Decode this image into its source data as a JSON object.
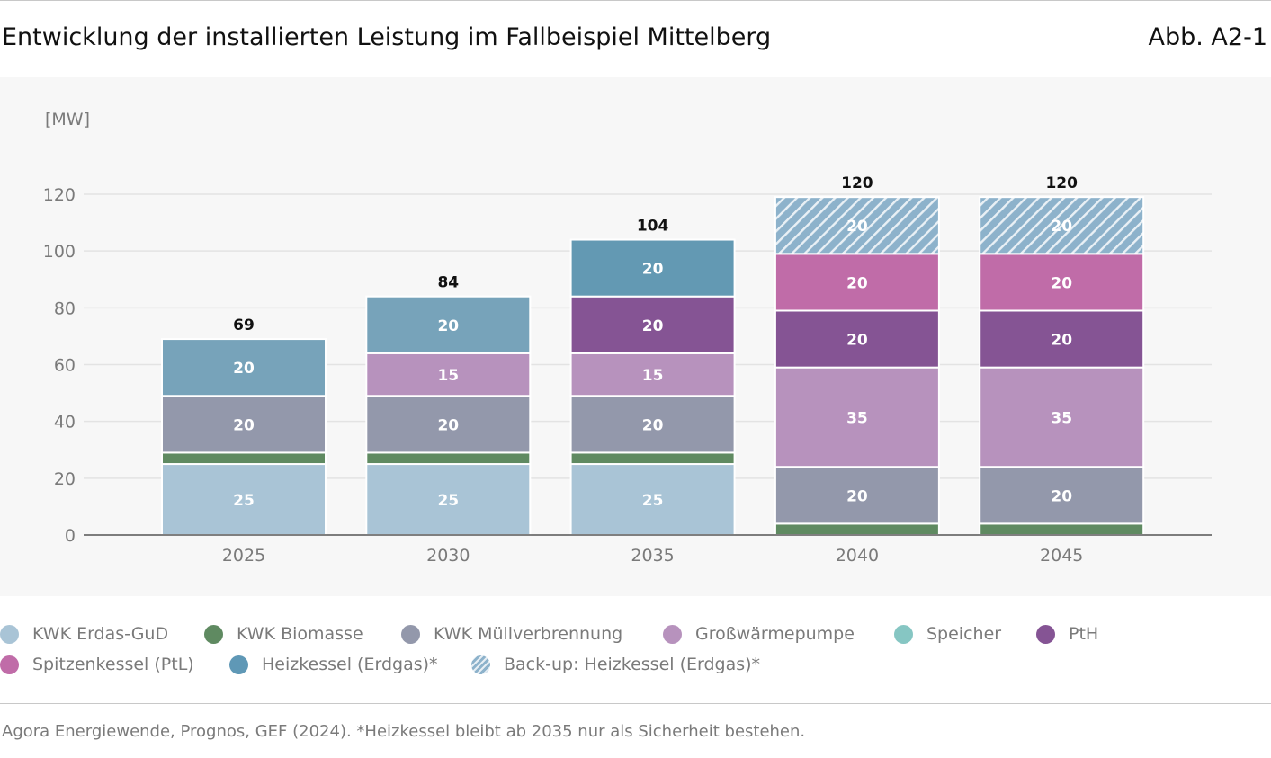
{
  "header": {
    "title": "Entwicklung der installierten Leistung im Fallbeispiel Mittelberg",
    "figure_label": "Abb. A2-1"
  },
  "chart_data": {
    "type": "bar",
    "stacked": true,
    "unit_label": "[MW]",
    "categories": [
      "2025",
      "2030",
      "2035",
      "2040",
      "2045"
    ],
    "ylim": [
      0,
      120
    ],
    "yticks": [
      0,
      20,
      40,
      60,
      80,
      100,
      120
    ],
    "grid": true,
    "totals": [
      "69",
      "84",
      "104",
      "120",
      "120"
    ],
    "series": [
      {
        "name": "KWK Erdas-GuD",
        "color": "#a9c4d6",
        "hatched": false,
        "values": [
          25,
          25,
          25,
          0,
          0
        ],
        "labels": [
          "25",
          "25",
          "25",
          "",
          ""
        ]
      },
      {
        "name": "KWK Biomasse",
        "color": "#5f8a61",
        "hatched": false,
        "values": [
          4,
          4,
          4,
          4,
          4
        ],
        "labels": [
          "",
          "",
          "",
          "",
          ""
        ]
      },
      {
        "name": "KWK Müllverbrennung",
        "color": "#9398ab",
        "hatched": false,
        "values": [
          20,
          20,
          20,
          20,
          20
        ],
        "labels": [
          "20",
          "20",
          "20",
          "20",
          "20"
        ]
      },
      {
        "name": "Großwärmepumpe",
        "color": "#b792bd",
        "hatched": false,
        "values": [
          0,
          15,
          15,
          35,
          35
        ],
        "labels": [
          "",
          "15",
          "15",
          "35",
          "35"
        ]
      },
      {
        "name": "Speicher",
        "color": "#86c6c3",
        "hatched": false,
        "values": [
          0,
          0,
          0,
          0,
          0
        ],
        "labels": [
          "",
          "",
          "",
          "",
          ""
        ]
      },
      {
        "name": "PtH",
        "color": "#855494",
        "hatched": false,
        "values": [
          0,
          0,
          20,
          20,
          20
        ],
        "labels": [
          "",
          "",
          "20",
          "20",
          "20"
        ]
      },
      {
        "name": "Spitzenkessel (PtL)",
        "color": "#c06ca8",
        "hatched": false,
        "values": [
          0,
          0,
          0,
          20,
          20
        ],
        "labels": [
          "",
          "",
          "",
          "20",
          "20"
        ]
      },
      {
        "name": "Heizkessel (Erdgas)*",
        "color": "#6d9eb8",
        "hatched": false,
        "values": [
          20,
          20,
          20,
          0,
          0
        ],
        "labels": [
          "20",
          "20",
          "20",
          "",
          ""
        ]
      },
      {
        "name": "Back-up: Heizkessel (Erdgas)*",
        "color": "#8db2cb",
        "hatched": true,
        "values": [
          0,
          0,
          0,
          20,
          20
        ],
        "labels": [
          "",
          "",
          "",
          "20",
          "20"
        ]
      }
    ],
    "bar_colors_override": {
      "Heizkessel (Erdgas)*": [
        "#77a3ba",
        "#77a3ba",
        "#6399b3",
        "",
        ""
      ]
    }
  },
  "legend": {
    "items": [
      {
        "label": "KWK Erdas-GuD",
        "color": "#a9c4d6",
        "hatched": false
      },
      {
        "label": "KWK Biomasse",
        "color": "#5f8a61",
        "hatched": false
      },
      {
        "label": "KWK Müllverbrennung",
        "color": "#9398ab",
        "hatched": false
      },
      {
        "label": "Großwärmepumpe",
        "color": "#b792bd",
        "hatched": false
      },
      {
        "label": "Speicher",
        "color": "#86c6c3",
        "hatched": false
      },
      {
        "label": "PtH",
        "color": "#855494",
        "hatched": false
      },
      {
        "label": "Spitzenkessel (PtL)",
        "color": "#c06ca8",
        "hatched": false
      },
      {
        "label": "Heizkessel (Erdgas)*",
        "color": "#5f98b6",
        "hatched": false
      },
      {
        "label": "Back-up: Heizkessel (Erdgas)*",
        "color": "#8db2cb",
        "hatched": true
      }
    ]
  },
  "footer": {
    "source": "Agora Energiewende, Prognos, GEF (2024). *Heizkessel bleibt ab 2035 nur als Sicherheit bestehen."
  }
}
